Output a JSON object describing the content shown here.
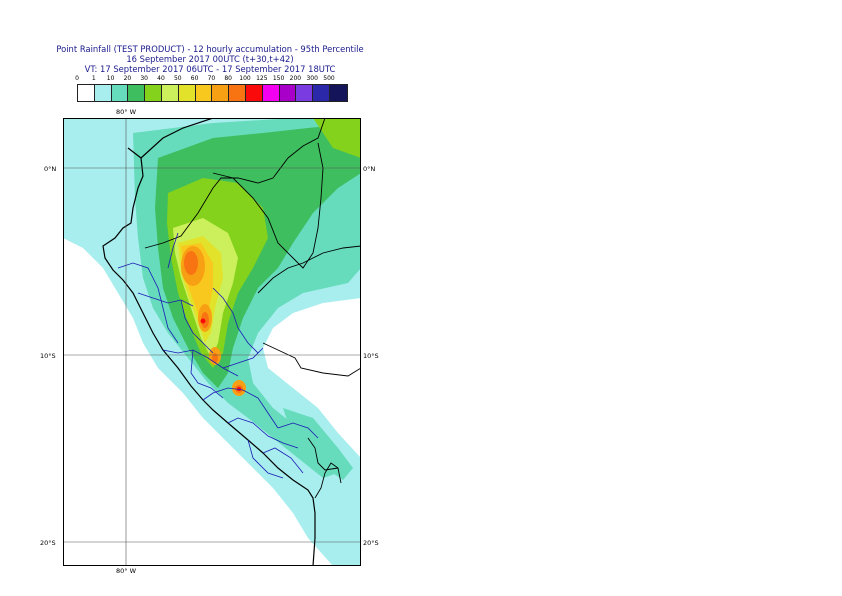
{
  "header": {
    "title_line1": "Point Rainfall (TEST PRODUCT) - 12 hourly accumulation - 95th Percentile",
    "title_line2": "16 September 2017 00UTC (t+30,t+42)",
    "title_line3": "VT: 17 September 2017 06UTC - 17 September 2017 18UTC"
  },
  "legend": {
    "thresholds": [
      "0",
      "1",
      "10",
      "20",
      "30",
      "40",
      "50",
      "60",
      "70",
      "80",
      "100",
      "125",
      "150",
      "200",
      "300",
      "500"
    ],
    "colors": [
      "#ffffff",
      "#a8eeee",
      "#66dcbc",
      "#3ebe5e",
      "#84d21c",
      "#ccf05c",
      "#e2e22a",
      "#f8c81e",
      "#f8a014",
      "#f87412",
      "#fa0a0a",
      "#f400f0",
      "#a800c8",
      "#7a3ce0",
      "#2c28aa",
      "#14145a"
    ]
  },
  "map": {
    "lon_top_label": "80° W",
    "lon_bottom_label": "80° W",
    "lat_labels_left": [
      "0°N",
      "10°S",
      "20°S"
    ],
    "lat_labels_right": [
      "0°N",
      "10°S",
      "20°S"
    ]
  }
}
